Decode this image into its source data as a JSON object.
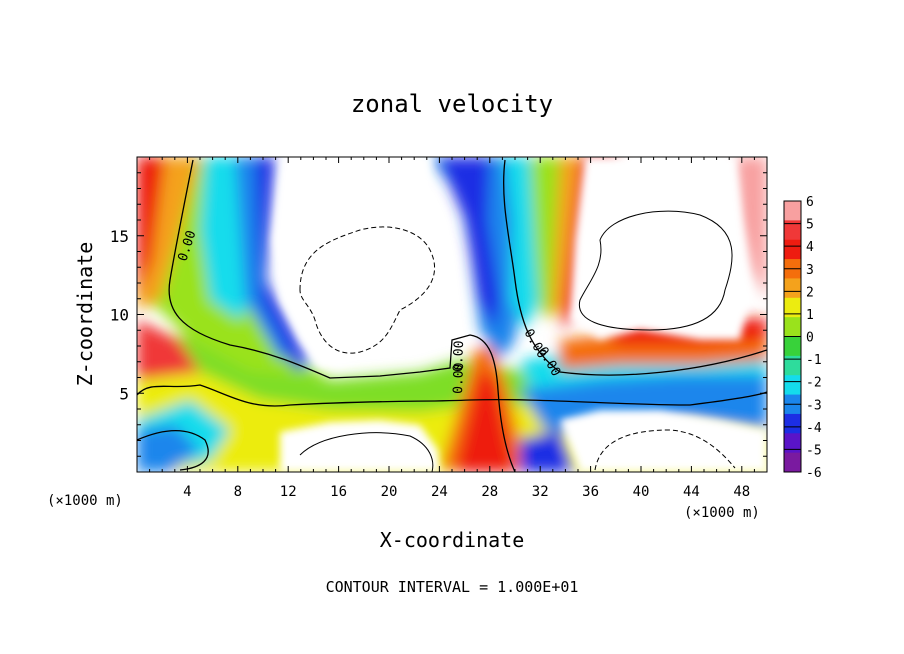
{
  "chart_data": {
    "type": "heatmap",
    "title": "zonal velocity",
    "xlabel": "X-coordinate",
    "ylabel": "Z-coordinate",
    "x_units": "(×1000 m)",
    "xlim": [
      0,
      50
    ],
    "ylim": [
      0,
      20
    ],
    "x_ticks": [
      "4",
      "8",
      "12",
      "16",
      "20",
      "24",
      "28",
      "32",
      "36",
      "40",
      "44",
      "48"
    ],
    "x_tick_values": [
      4,
      8,
      12,
      16,
      20,
      24,
      28,
      32,
      36,
      40,
      44,
      48
    ],
    "y_ticks": [
      "5",
      "10",
      "15"
    ],
    "y_tick_values": [
      5,
      10,
      15
    ],
    "colorbar": {
      "labels": [
        "6",
        "5",
        "4",
        "3",
        "2",
        "1",
        "0",
        "-1",
        "-2",
        "-3",
        "-4",
        "-5",
        "-6"
      ],
      "levels": [
        6,
        5,
        4,
        3,
        2,
        1,
        0,
        -1,
        -2,
        -3,
        -4,
        -5,
        -6
      ],
      "colors": [
        "#f8a0a0",
        "#f03838",
        "#ee1c10",
        "#f46e0c",
        "#f4a21c",
        "#ecec10",
        "#9ae21c",
        "#38d23a",
        "#2edc9c",
        "#14dcec",
        "#1a86ec",
        "#1c2ee4",
        "#5a14c8",
        "#7a1aa0"
      ]
    },
    "contour_labels": [
      "0.00",
      "0.00",
      "0.00",
      "0.00",
      "0.00"
    ],
    "grid": false,
    "legend": "colorbar right"
  },
  "footer": {
    "contour_interval": "CONTOUR INTERVAL = 1.000E+01"
  }
}
